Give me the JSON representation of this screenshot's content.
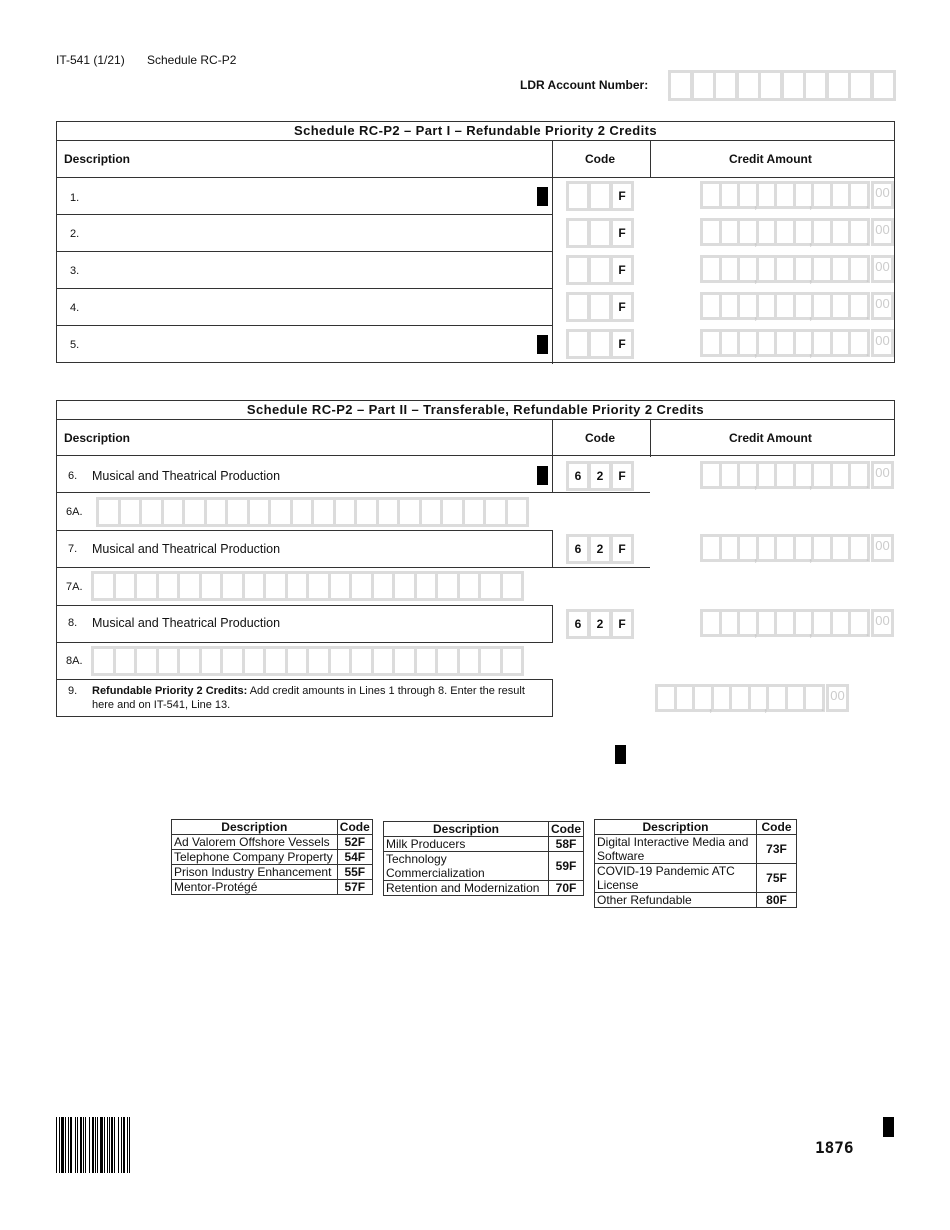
{
  "header": {
    "form_id": "IT-541 (1/21)",
    "schedule": "Schedule RC-P2",
    "ldr_label": "LDR Account Number:"
  },
  "part1": {
    "title": "Schedule RC-P2 – Part I – Refundable Priority 2 Credits",
    "col_desc": "Description",
    "col_code": "Code",
    "col_amount": "Credit Amount",
    "rows": [
      {
        "num": "1.",
        "code_suffix": "F"
      },
      {
        "num": "2.",
        "code_suffix": "F"
      },
      {
        "num": "3.",
        "code_suffix": "F"
      },
      {
        "num": "4.",
        "code_suffix": "F"
      },
      {
        "num": "5.",
        "code_suffix": "F"
      }
    ]
  },
  "part2": {
    "title": "Schedule RC-P2 – Part II – Transferable, Refundable Priority 2 Credits",
    "col_desc": "Description",
    "col_code": "Code",
    "col_amount": "Credit Amount",
    "rows": [
      {
        "num": "6.",
        "desc": "Musical and Theatrical Production",
        "code": [
          "6",
          "2",
          "F"
        ]
      },
      {
        "num": "6A."
      },
      {
        "num": "7.",
        "desc": "Musical and Theatrical Production",
        "code": [
          "6",
          "2",
          "F"
        ]
      },
      {
        "num": "7A."
      },
      {
        "num": "8.",
        "desc": "Musical and Theatrical Production",
        "code": [
          "6",
          "2",
          "F"
        ]
      },
      {
        "num": "8A."
      }
    ],
    "line9": {
      "num": "9.",
      "bold": "Refundable Priority 2 Credits:",
      "text": " Add credit amounts in Lines 1 through 8. Enter the result here and on IT-541, Line 13."
    }
  },
  "amount_cents": "00",
  "ref_tables": [
    {
      "h_desc": "Description",
      "h_code": "Code",
      "rows": [
        [
          "Ad Valorem Offshore Vessels",
          "52F"
        ],
        [
          "Telephone Company Property",
          "54F"
        ],
        [
          "Prison Industry Enhancement",
          "55F"
        ],
        [
          "Mentor-Protégé",
          "57F"
        ]
      ]
    },
    {
      "h_desc": "Description",
      "h_code": "Code",
      "rows": [
        [
          "Milk Producers",
          "58F"
        ],
        [
          "Technology Commercialization",
          "59F"
        ],
        [
          "Retention and Modernization",
          "70F"
        ]
      ]
    },
    {
      "h_desc": "Description",
      "h_code": "Code",
      "rows": [
        [
          "Digital Interactive Media and Software",
          "73F"
        ],
        [
          "COVID-19 Pandemic ATC License",
          "75F"
        ],
        [
          "Other Refundable",
          "80F"
        ]
      ]
    }
  ],
  "footer": {
    "page_code": "1876"
  }
}
